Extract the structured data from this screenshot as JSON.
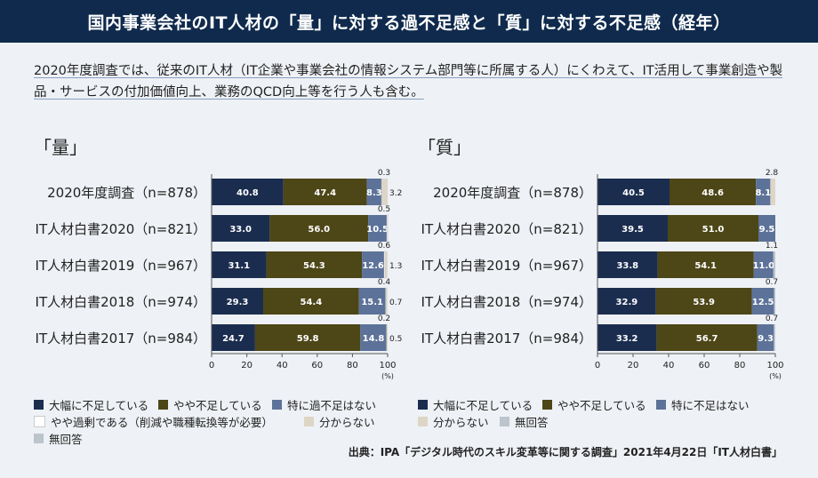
{
  "title": "国内事業会社のIT人材の「量」に対する過不足感と「質」に対する不足感（経年）",
  "note": "2020年度調査では、従来のIT人材（IT企業や事業会社の情報システム部門等に所属する人）にくわえて、IT活用して事業創造や製品・サービスの付加価値向上、業務のQCD向上等を行う人も含む。",
  "source": "出典：IPA「デジタル時代のスキル変革等に関する調査」2021年4月22日「IT人材白書」",
  "colors": {
    "navy": "#1b2d4f",
    "olive": "#4d4617",
    "steel": "#5c7299",
    "white": "#ffffff",
    "beige": "#ddd6c6",
    "gray": "#bcc4cc"
  },
  "chart_data": [
    {
      "type": "bar",
      "title": "「量」",
      "unit": "(%)",
      "xlim": [
        0,
        100
      ],
      "ticks": [
        "0",
        "20",
        "40",
        "60",
        "80",
        "100"
      ],
      "categories": [
        "2020年度調査（n=878）",
        "IT人材白書2020（n=821）",
        "IT人材白書2019（n=967）",
        "IT人材白書2018（n=974）",
        "IT人材白書2017（n=984）"
      ],
      "series": [
        {
          "name": "大幅に不足している",
          "color": "#1b2d4f",
          "values": [
            40.8,
            33.0,
            31.1,
            29.3,
            24.7
          ]
        },
        {
          "name": "やや不足している",
          "color": "#4d4617",
          "values": [
            47.4,
            56.0,
            54.3,
            54.4,
            59.8
          ]
        },
        {
          "name": "特に過不足はない",
          "color": "#5c7299",
          "values": [
            8.3,
            10.5,
            12.6,
            15.1,
            14.8
          ]
        },
        {
          "name": "やや過剰である（削減や職種転換等が必要）",
          "color": "#ffffff",
          "values": [
            0.3,
            0.5,
            0.6,
            0.4,
            0.2
          ]
        },
        {
          "name": "分からない",
          "color": "#ddd6c6",
          "values": [
            3.2,
            0,
            1.3,
            0.7,
            0.5
          ]
        },
        {
          "name": "無回答",
          "color": "#bcc4cc",
          "values": [
            0,
            0,
            0,
            0,
            0
          ]
        }
      ],
      "labels_top": [
        "0.3",
        "0.5",
        "0.6",
        "0.4",
        "0.2"
      ],
      "labels_right": [
        "3.2",
        "",
        "1.3",
        "0.7",
        "0.5"
      ]
    },
    {
      "type": "bar",
      "title": "「質」",
      "unit": "(%)",
      "xlim": [
        0,
        100
      ],
      "ticks": [
        "0",
        "20",
        "40",
        "60",
        "80",
        "100"
      ],
      "categories": [
        "2020年度調査（n=878）",
        "IT人材白書2020（n=821）",
        "IT人材白書2019（n=967）",
        "IT人材白書2018（n=974）",
        "IT人材白書2017（n=984）"
      ],
      "series": [
        {
          "name": "大幅に不足している",
          "color": "#1b2d4f",
          "values": [
            40.5,
            39.5,
            33.8,
            32.9,
            33.2
          ]
        },
        {
          "name": "やや不足している",
          "color": "#4d4617",
          "values": [
            48.6,
            51.0,
            54.1,
            53.9,
            56.7
          ]
        },
        {
          "name": "特に不足はない",
          "color": "#5c7299",
          "values": [
            8.1,
            9.5,
            11.0,
            12.5,
            9.3
          ]
        },
        {
          "name": "分からない",
          "color": "#ddd6c6",
          "values": [
            2.8,
            0,
            0,
            0,
            0
          ]
        },
        {
          "name": "無回答",
          "color": "#bcc4cc",
          "values": [
            0,
            0,
            1.1,
            0.7,
            0.7
          ]
        }
      ],
      "labels_top": [
        "2.8",
        "",
        "1.1",
        "0.7",
        "0.7"
      ],
      "labels_right": [
        "",
        "",
        "",
        "",
        ""
      ]
    }
  ],
  "legend_left": [
    {
      "label": "大幅に不足している",
      "color": "#1b2d4f"
    },
    {
      "label": "やや不足している",
      "color": "#4d4617"
    },
    {
      "label": "特に過不足はない",
      "color": "#5c7299"
    },
    {
      "label": "やや過剰である（削減や職種転換等が必要）",
      "color": "#ffffff"
    },
    {
      "label": "分からない",
      "color": "#ddd6c6"
    },
    {
      "label": "無回答",
      "color": "#bcc4cc"
    }
  ],
  "legend_right": [
    {
      "label": "大幅に不足している",
      "color": "#1b2d4f"
    },
    {
      "label": "やや不足している",
      "color": "#4d4617"
    },
    {
      "label": "特に不足はない",
      "color": "#5c7299"
    },
    {
      "label": "分からない",
      "color": "#ddd6c6"
    },
    {
      "label": "無回答",
      "color": "#bcc4cc"
    }
  ]
}
